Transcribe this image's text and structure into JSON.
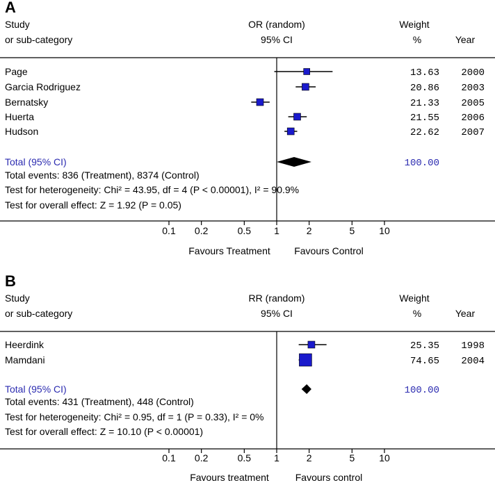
{
  "chart_data": [
    {
      "type": "forest",
      "panel_label": "A",
      "header": {
        "study": "Study",
        "subcategory": "or sub-category",
        "measure": "OR (random)",
        "ci": "95% CI",
        "weight": "Weight",
        "weight_unit": "%",
        "year": "Year"
      },
      "studies": [
        {
          "name": "Page",
          "estimate": 1.9,
          "ci_low": 0.95,
          "ci_high": 3.3,
          "weight": "13.63",
          "year": "2000"
        },
        {
          "name": "Garcia Rodriguez",
          "estimate": 1.85,
          "ci_low": 1.5,
          "ci_high": 2.3,
          "weight": "20.86",
          "year": "2003"
        },
        {
          "name": "Bernatsky",
          "estimate": 0.7,
          "ci_low": 0.58,
          "ci_high": 0.86,
          "weight": "21.33",
          "year": "2005"
        },
        {
          "name": "Huerta",
          "estimate": 1.55,
          "ci_low": 1.28,
          "ci_high": 1.9,
          "weight": "21.55",
          "year": "2006"
        },
        {
          "name": "Hudson",
          "estimate": 1.35,
          "ci_low": 1.18,
          "ci_high": 1.55,
          "weight": "22.62",
          "year": "2007"
        }
      ],
      "total": {
        "label": "Total (95% CI)",
        "estimate": 1.45,
        "ci_low": 1.0,
        "ci_high": 2.1,
        "weight": "100.00"
      },
      "stats": [
        "Total events: 836 (Treatment), 8374 (Control)",
        "Test for heterogeneity: Chi² = 43.95, df = 4 (P < 0.00001), I² = 90.9%",
        "Test for overall effect: Z = 1.92 (P = 0.05)"
      ],
      "axis": {
        "scale": "log",
        "ticks": [
          "0.1",
          "0.2",
          "0.5",
          "1",
          "2",
          "5",
          "10"
        ],
        "xlim": [
          0.1,
          10
        ]
      },
      "favours_left": "Favours Treatment",
      "favours_right": "Favours Control"
    },
    {
      "type": "forest",
      "panel_label": "B",
      "header": {
        "study": "Study",
        "subcategory": "or sub-category",
        "measure": "RR (random)",
        "ci": "95% CI",
        "weight": "Weight",
        "weight_unit": "%",
        "year": "Year"
      },
      "studies": [
        {
          "name": "Heerdink",
          "estimate": 2.1,
          "ci_low": 1.6,
          "ci_high": 2.9,
          "weight": "25.35",
          "year": "1998"
        },
        {
          "name": "Mamdani",
          "estimate": 1.85,
          "ci_low": 1.6,
          "ci_high": 2.1,
          "weight": "74.65",
          "year": "2004"
        }
      ],
      "total": {
        "label": "Total (95% CI)",
        "estimate": 1.9,
        "ci_low": 1.7,
        "ci_high": 2.1,
        "weight": "100.00"
      },
      "stats": [
        "Total events: 431 (Treatment), 448 (Control)",
        "Test for heterogeneity: Chi² = 0.95, df = 1 (P = 0.33), I² = 0%",
        "Test for overall effect: Z = 10.10 (P < 0.00001)"
      ],
      "axis": {
        "scale": "log",
        "ticks": [
          "0.1",
          "0.2",
          "0.5",
          "1",
          "2",
          "5",
          "10"
        ],
        "xlim": [
          0.1,
          10
        ]
      },
      "favours_left": "Favours treatment",
      "favours_right": "Favours control"
    }
  ]
}
